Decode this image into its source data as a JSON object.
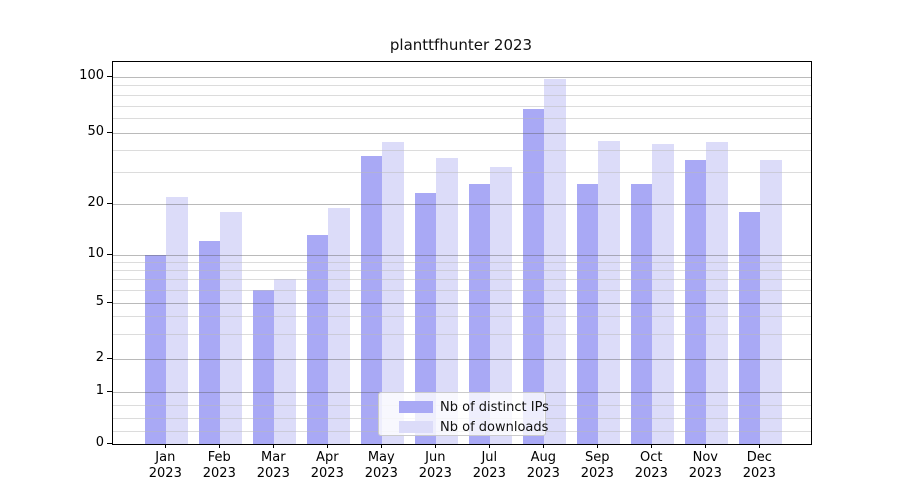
{
  "title": "planttfhunter 2023",
  "chart_data": {
    "type": "bar",
    "title": "planttfhunter 2023",
    "months": [
      "Jan",
      "Feb",
      "Mar",
      "Apr",
      "May",
      "Jun",
      "Jul",
      "Aug",
      "Sep",
      "Oct",
      "Nov",
      "Dec"
    ],
    "year": "2023",
    "series": [
      {
        "name": "Nb of distinct IPs",
        "color": "#a9a9f5",
        "values": [
          10,
          12,
          6,
          13,
          37,
          23,
          26,
          67,
          26,
          26,
          35,
          18
        ]
      },
      {
        "name": "Nb of downloads",
        "color": "#dcdcf9",
        "values": [
          22,
          18,
          7,
          19,
          44,
          36,
          32,
          97,
          45,
          43,
          44,
          35
        ]
      }
    ],
    "y_axis": {
      "scale": "symlog",
      "tick_values": [
        0,
        1,
        2,
        5,
        10,
        20,
        50,
        100
      ],
      "tick_labels": [
        "0",
        "1",
        "2",
        "5",
        "10",
        "20",
        "50",
        "100"
      ],
      "minor_tick_values": [
        0.25,
        0.5,
        0.75,
        3,
        4,
        6,
        7,
        8,
        9,
        30,
        40,
        60,
        70,
        80,
        90
      ],
      "range": [
        0,
        115
      ]
    },
    "legend": {
      "position": "lower-center-inside",
      "entries": [
        "Nb of distinct IPs",
        "Nb of downloads"
      ]
    },
    "grid": "horizontal major and minor lines"
  },
  "colors": {
    "distinct_ips": "#a9a9f5",
    "downloads": "#dcdcf9",
    "grid_major": "#b3b3b3",
    "grid_minor": "#e3e3e3",
    "spine": "#000000",
    "background": "#ffffff",
    "legend_border": "#cbcbcb"
  }
}
